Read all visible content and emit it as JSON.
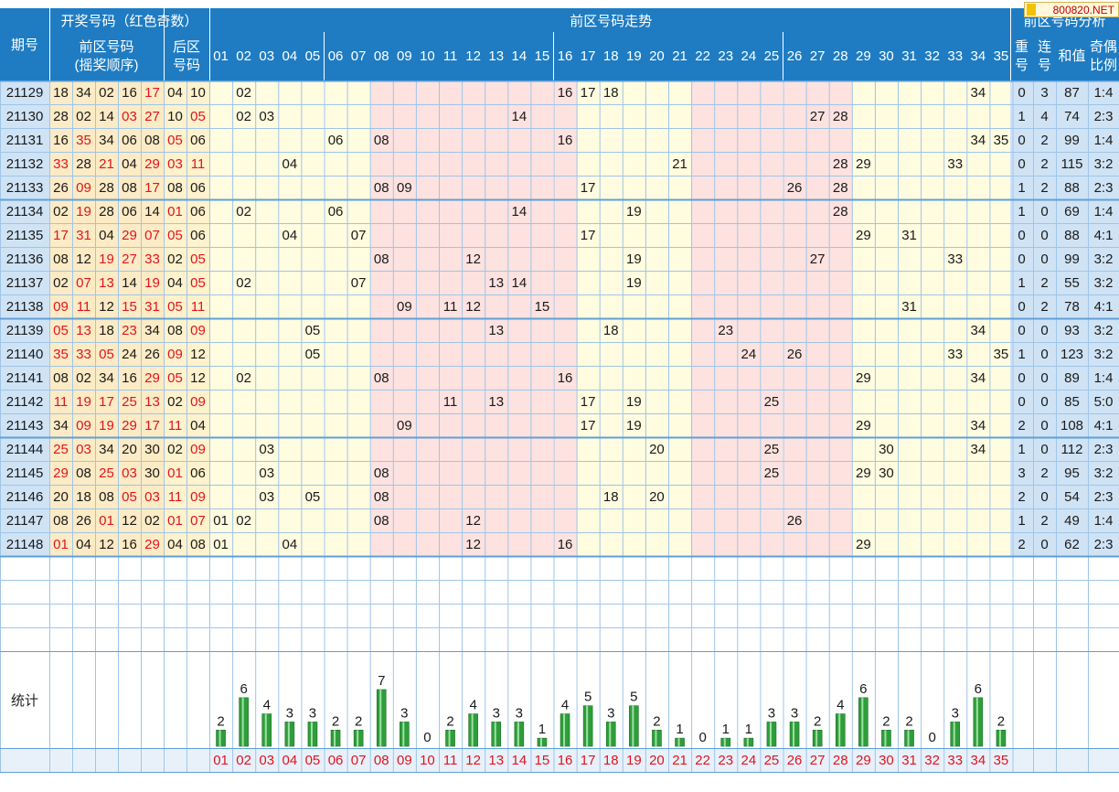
{
  "header": {
    "period": "期号",
    "draw_numbers": "开奖号码（红色奇数）",
    "front_numbers": "前区号码",
    "front_order": "(摇奖顺序)",
    "back_line1": "后区",
    "back_line2": "号码",
    "trend": "前区号码走势",
    "analysis": "前区号码分析",
    "repeat_1": "重",
    "repeat_2": "号",
    "consec_1": "连",
    "consec_2": "号",
    "sum": "和值",
    "oddeven_1": "奇偶",
    "oddeven_2": "比例"
  },
  "watermark": "800820.NET",
  "column_numbers": [
    "01",
    "02",
    "03",
    "04",
    "05",
    "06",
    "07",
    "08",
    "09",
    "10",
    "11",
    "12",
    "13",
    "14",
    "15",
    "16",
    "17",
    "18",
    "19",
    "20",
    "21",
    "22",
    "23",
    "24",
    "25",
    "26",
    "27",
    "28",
    "29",
    "30",
    "31",
    "32",
    "33",
    "34",
    "35"
  ],
  "colors": {
    "header_bg": "#1f7cc2",
    "period_bg": "#cfe3f5",
    "front_bg": "#fcebc5",
    "back_bg": "#fff2cc",
    "trend_yellow": "#fffce0",
    "trend_pink": "#fde2e0",
    "odd_red": "#e0141e",
    "bar_green": "#2e9e3a"
  },
  "rows": [
    {
      "period": "21129",
      "front": [
        "18",
        "34",
        "02",
        "16",
        "17"
      ],
      "back": [
        "04",
        "10"
      ],
      "repeat": "0",
      "consec": "3",
      "sum": "87",
      "ratio": "1:4"
    },
    {
      "period": "21130",
      "front": [
        "28",
        "02",
        "14",
        "03",
        "27"
      ],
      "back": [
        "10",
        "05"
      ],
      "repeat": "1",
      "consec": "4",
      "sum": "74",
      "ratio": "2:3"
    },
    {
      "period": "21131",
      "front": [
        "16",
        "35",
        "34",
        "06",
        "08"
      ],
      "back": [
        "05",
        "06"
      ],
      "repeat": "0",
      "consec": "2",
      "sum": "99",
      "ratio": "1:4"
    },
    {
      "period": "21132",
      "front": [
        "33",
        "28",
        "21",
        "04",
        "29"
      ],
      "back": [
        "03",
        "11"
      ],
      "repeat": "0",
      "consec": "2",
      "sum": "115",
      "ratio": "3:2"
    },
    {
      "period": "21133",
      "front": [
        "26",
        "09",
        "28",
        "08",
        "17"
      ],
      "back": [
        "08",
        "06"
      ],
      "repeat": "1",
      "consec": "2",
      "sum": "88",
      "ratio": "2:3"
    },
    {
      "period": "21134",
      "front": [
        "02",
        "19",
        "28",
        "06",
        "14"
      ],
      "back": [
        "01",
        "06"
      ],
      "repeat": "1",
      "consec": "0",
      "sum": "69",
      "ratio": "1:4"
    },
    {
      "period": "21135",
      "front": [
        "17",
        "31",
        "04",
        "29",
        "07"
      ],
      "back": [
        "05",
        "06"
      ],
      "repeat": "0",
      "consec": "0",
      "sum": "88",
      "ratio": "4:1"
    },
    {
      "period": "21136",
      "front": [
        "08",
        "12",
        "19",
        "27",
        "33"
      ],
      "back": [
        "02",
        "05"
      ],
      "repeat": "0",
      "consec": "0",
      "sum": "99",
      "ratio": "3:2"
    },
    {
      "period": "21137",
      "front": [
        "02",
        "07",
        "13",
        "14",
        "19"
      ],
      "back": [
        "04",
        "05"
      ],
      "repeat": "1",
      "consec": "2",
      "sum": "55",
      "ratio": "3:2"
    },
    {
      "period": "21138",
      "front": [
        "09",
        "11",
        "12",
        "15",
        "31"
      ],
      "back": [
        "05",
        "11"
      ],
      "repeat": "0",
      "consec": "2",
      "sum": "78",
      "ratio": "4:1"
    },
    {
      "period": "21139",
      "front": [
        "05",
        "13",
        "18",
        "23",
        "34"
      ],
      "back": [
        "08",
        "09"
      ],
      "repeat": "0",
      "consec": "0",
      "sum": "93",
      "ratio": "3:2"
    },
    {
      "period": "21140",
      "front": [
        "35",
        "33",
        "05",
        "24",
        "26"
      ],
      "back": [
        "09",
        "12"
      ],
      "repeat": "1",
      "consec": "0",
      "sum": "123",
      "ratio": "3:2"
    },
    {
      "period": "21141",
      "front": [
        "08",
        "02",
        "34",
        "16",
        "29"
      ],
      "back": [
        "05",
        "12"
      ],
      "repeat": "0",
      "consec": "0",
      "sum": "89",
      "ratio": "1:4"
    },
    {
      "period": "21142",
      "front": [
        "11",
        "19",
        "17",
        "25",
        "13"
      ],
      "back": [
        "02",
        "09"
      ],
      "repeat": "0",
      "consec": "0",
      "sum": "85",
      "ratio": "5:0"
    },
    {
      "period": "21143",
      "front": [
        "34",
        "09",
        "19",
        "29",
        "17"
      ],
      "back": [
        "11",
        "04"
      ],
      "repeat": "2",
      "consec": "0",
      "sum": "108",
      "ratio": "4:1"
    },
    {
      "period": "21144",
      "front": [
        "25",
        "03",
        "34",
        "20",
        "30"
      ],
      "back": [
        "02",
        "09"
      ],
      "repeat": "1",
      "consec": "0",
      "sum": "112",
      "ratio": "2:3"
    },
    {
      "period": "21145",
      "front": [
        "29",
        "08",
        "25",
        "03",
        "30"
      ],
      "back": [
        "01",
        "06"
      ],
      "repeat": "3",
      "consec": "2",
      "sum": "95",
      "ratio": "3:2"
    },
    {
      "period": "21146",
      "front": [
        "20",
        "18",
        "08",
        "05",
        "03"
      ],
      "back": [
        "11",
        "09"
      ],
      "repeat": "2",
      "consec": "0",
      "sum": "54",
      "ratio": "2:3"
    },
    {
      "period": "21147",
      "front": [
        "08",
        "26",
        "01",
        "12",
        "02"
      ],
      "back": [
        "01",
        "07"
      ],
      "repeat": "1",
      "consec": "2",
      "sum": "49",
      "ratio": "1:4"
    },
    {
      "period": "21148",
      "front": [
        "01",
        "04",
        "12",
        "16",
        "29"
      ],
      "back": [
        "04",
        "08"
      ],
      "repeat": "2",
      "consec": "0",
      "sum": "62",
      "ratio": "2:3"
    }
  ],
  "stats_label": "统计",
  "chart_data": {
    "type": "bar",
    "title": "",
    "xlabel": "",
    "ylabel": "统计",
    "categories": [
      "01",
      "02",
      "03",
      "04",
      "05",
      "06",
      "07",
      "08",
      "09",
      "10",
      "11",
      "12",
      "13",
      "14",
      "15",
      "16",
      "17",
      "18",
      "19",
      "20",
      "21",
      "22",
      "23",
      "24",
      "25",
      "26",
      "27",
      "28",
      "29",
      "30",
      "31",
      "32",
      "33",
      "34",
      "35"
    ],
    "values": [
      2,
      6,
      4,
      3,
      3,
      2,
      2,
      7,
      3,
      0,
      2,
      4,
      3,
      3,
      1,
      4,
      5,
      3,
      5,
      2,
      1,
      0,
      1,
      1,
      3,
      3,
      2,
      4,
      6,
      2,
      2,
      0,
      3,
      6,
      2
    ],
    "ylim": [
      0,
      7
    ]
  }
}
